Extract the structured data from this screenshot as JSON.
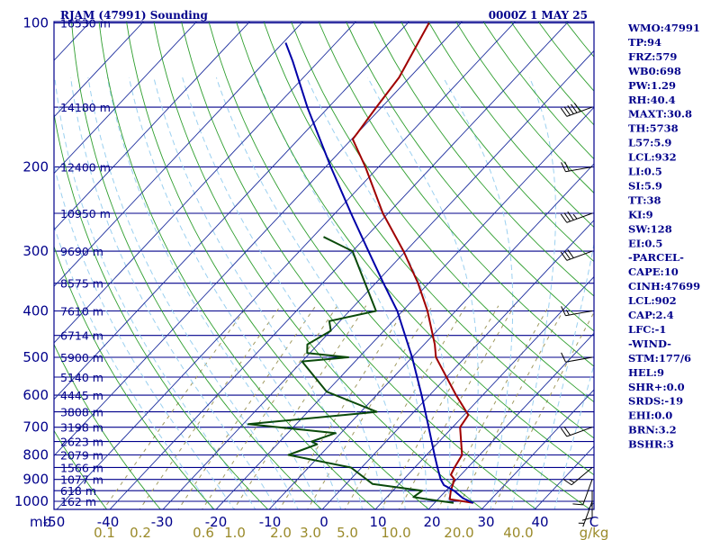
{
  "header": {
    "title": "RJAM (47991) Sounding",
    "time": "0000Z  1 MAY 25"
  },
  "colors": {
    "isobar": "#00008b",
    "isotherm": "#1e2f9e",
    "dry_adiabat": "#2e9e2e",
    "moist_adiabat": "#9bd0f0",
    "mixing_ratio": "#a09a60",
    "temperature": "#a00000",
    "dewpoint": "#0a4a0a",
    "parcel": "#0000a8",
    "text": "#00008b"
  },
  "indices": [
    "WMO:47991",
    "TP:94",
    "FRZ:579",
    "WB0:698",
    "PW:1.29",
    "RH:40.4",
    "MAXT:30.8",
    "TH:5738",
    "L57:5.9",
    "LCL:932",
    "LI:0.5",
    "SI:5.9",
    "TT:38",
    "KI:9",
    "SW:128",
    "EI:0.5",
    "-PARCEL-",
    "CAPE:10",
    "CINH:47699",
    "LCL:902",
    "CAP:2.4",
    "LFC:-1",
    "-WIND-",
    "STM:177/6",
    "HEL:9",
    "SHR+:0.0",
    "SRDS:-19",
    "EHI:0.0",
    "BRN:3.2",
    "BSHR:3"
  ],
  "chart_data": {
    "type": "line",
    "title": "RJAM (47991) Sounding",
    "diagram": "skew-T log-P",
    "y_unit": "mb",
    "mixing_ratio_unit": "g/kg",
    "ylim": [
      1000,
      100
    ],
    "xlim": [
      -50,
      50
    ],
    "pressure_levels": [
      100,
      200,
      300,
      400,
      500,
      600,
      700,
      800,
      900,
      1000
    ],
    "temperature_ticks": [
      "-50",
      "-40",
      "-30",
      "-20",
      "-10",
      "0",
      "10",
      "20",
      "30",
      "40",
      "C"
    ],
    "mixing_ratio_ticks": [
      "0.1",
      "0.2",
      "0.6",
      "1.0",
      "2.0",
      "3.0",
      "5.0",
      "10.0",
      "20.0",
      "40.0",
      "g/kg"
    ],
    "height_labels": [
      {
        "p": 100,
        "label": "16530 m"
      },
      {
        "p": 150,
        "label": "14180 m"
      },
      {
        "p": 200,
        "label": "12400 m"
      },
      {
        "p": 250,
        "label": "10950 m"
      },
      {
        "p": 300,
        "label": "9690 m"
      },
      {
        "p": 350,
        "label": "8575 m"
      },
      {
        "p": 400,
        "label": "7610 m"
      },
      {
        "p": 450,
        "label": "6714 m"
      },
      {
        "p": 500,
        "label": "5900 m"
      },
      {
        "p": 550,
        "label": "5140 m"
      },
      {
        "p": 600,
        "label": "4445 m"
      },
      {
        "p": 650,
        "label": "3808 m"
      },
      {
        "p": 700,
        "label": "3198 m"
      },
      {
        "p": 750,
        "label": "2623 m"
      },
      {
        "p": 800,
        "label": "2079 m"
      },
      {
        "p": 850,
        "label": "1566 m"
      },
      {
        "p": 900,
        "label": "1077 m"
      },
      {
        "p": 950,
        "label": "618 m"
      },
      {
        "p": 1000,
        "label": "162 m"
      }
    ],
    "series": [
      {
        "key": "temperature",
        "points": [
          {
            "p": 1008,
            "t": 27.3
          },
          {
            "p": 990,
            "t": 22.2
          },
          {
            "p": 950,
            "t": 20.9
          },
          {
            "p": 900,
            "t": 19.6
          },
          {
            "p": 880,
            "t": 18.1
          },
          {
            "p": 850,
            "t": 17.5
          },
          {
            "p": 800,
            "t": 16.7
          },
          {
            "p": 700,
            "t": 11.4
          },
          {
            "p": 660,
            "t": 10.8
          },
          {
            "p": 600,
            "t": 5.0
          },
          {
            "p": 500,
            "t": -5.5
          },
          {
            "p": 470,
            "t": -8.0
          },
          {
            "p": 400,
            "t": -15.3
          },
          {
            "p": 350,
            "t": -22.0
          },
          {
            "p": 300,
            "t": -30.4
          },
          {
            "p": 250,
            "t": -41.0
          },
          {
            "p": 200,
            "t": -52.5
          },
          {
            "p": 175,
            "t": -59.8
          },
          {
            "p": 170,
            "t": -60.0
          },
          {
            "p": 150,
            "t": -61.0
          },
          {
            "p": 130,
            "t": -62.0
          },
          {
            "p": 100,
            "t": -66.0
          }
        ]
      },
      {
        "key": "dewpoint",
        "points": [
          {
            "p": 1008,
            "t": 23.6
          },
          {
            "p": 990,
            "t": 18.0
          },
          {
            "p": 980,
            "t": 15.0
          },
          {
            "p": 950,
            "t": 15.5
          },
          {
            "p": 920,
            "t": 5.0
          },
          {
            "p": 850,
            "t": -2.0
          },
          {
            "p": 800,
            "t": -16.0
          },
          {
            "p": 760,
            "t": -12.5
          },
          {
            "p": 750,
            "t": -14.0
          },
          {
            "p": 720,
            "t": -11.0
          },
          {
            "p": 690,
            "t": -29.0
          },
          {
            "p": 650,
            "t": -7.0
          },
          {
            "p": 590,
            "t": -20.0
          },
          {
            "p": 510,
            "t": -30.0
          },
          {
            "p": 500,
            "t": -22.0
          },
          {
            "p": 490,
            "t": -30.5
          },
          {
            "p": 470,
            "t": -32.0
          },
          {
            "p": 440,
            "t": -30.0
          },
          {
            "p": 420,
            "t": -32.0
          },
          {
            "p": 400,
            "t": -25.0
          },
          {
            "p": 300,
            "t": -40.0
          },
          {
            "p": 280,
            "t": -48.0
          }
        ]
      },
      {
        "key": "parcel",
        "points": [
          {
            "p": 1008,
            "t": 27.3
          },
          {
            "p": 985,
            "t": 24.5
          },
          {
            "p": 950,
            "t": 21.5
          },
          {
            "p": 925,
            "t": 18.6
          },
          {
            "p": 900,
            "t": 17.0
          },
          {
            "p": 850,
            "t": 14.3
          },
          {
            "p": 800,
            "t": 11.5
          },
          {
            "p": 700,
            "t": 5.5
          },
          {
            "p": 600,
            "t": -1.5
          },
          {
            "p": 500,
            "t": -10.0
          },
          {
            "p": 400,
            "t": -21.0
          },
          {
            "p": 350,
            "t": -28.5
          },
          {
            "p": 300,
            "t": -37.0
          },
          {
            "p": 250,
            "t": -47.0
          },
          {
            "p": 200,
            "t": -59.0
          },
          {
            "p": 150,
            "t": -74.0
          },
          {
            "p": 120,
            "t": -85.0
          },
          {
            "p": 110,
            "t": -89.5
          }
        ]
      }
    ],
    "mixing_ratio_lines": [
      0.1,
      0.2,
      0.4,
      0.6,
      1.0,
      2.0,
      3.0,
      5.0,
      8.0,
      10.0,
      16.0,
      20.0,
      30.0
    ],
    "winds": [
      {
        "p": 1000,
        "dir": 200,
        "spd": 5
      },
      {
        "p": 950,
        "dir": 180,
        "spd": 10
      },
      {
        "p": 900,
        "dir": 200,
        "spd": 15
      },
      {
        "p": 850,
        "dir": 230,
        "spd": 15
      },
      {
        "p": 700,
        "dir": 250,
        "spd": 20
      },
      {
        "p": 500,
        "dir": 260,
        "spd": 10
      },
      {
        "p": 400,
        "dir": 260,
        "spd": 15
      },
      {
        "p": 300,
        "dir": 250,
        "spd": 30
      },
      {
        "p": 250,
        "dir": 250,
        "spd": 35
      },
      {
        "p": 200,
        "dir": 260,
        "spd": 20
      },
      {
        "p": 150,
        "dir": 250,
        "spd": 50
      }
    ]
  }
}
